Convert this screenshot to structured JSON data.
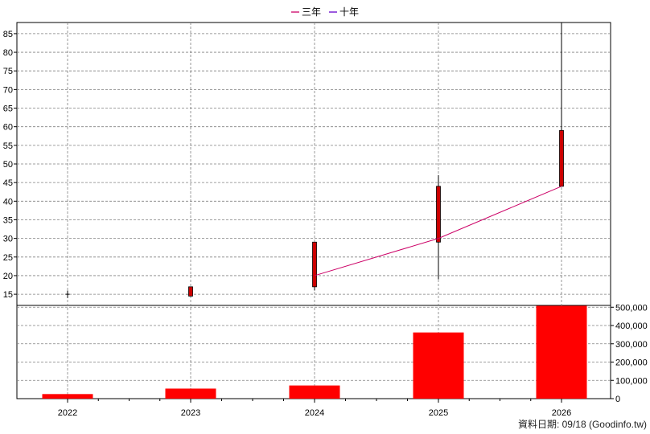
{
  "chart_data": {
    "type": "candlestick",
    "legend": {
      "placement": "top-center",
      "entries": [
        {
          "name": "三年",
          "color": "#cc0066"
        },
        {
          "name": "十年",
          "color": "#6600cc"
        }
      ]
    },
    "categories": [
      "2022",
      "2023",
      "2024",
      "2025",
      "2026"
    ],
    "price_axis": {
      "ylim": [
        12,
        88
      ],
      "ticks": [
        15,
        20,
        25,
        30,
        35,
        40,
        45,
        50,
        55,
        60,
        65,
        70,
        75,
        80,
        85
      ],
      "grid": true
    },
    "candles": [
      {
        "x": "2022",
        "open": 15,
        "close": 15,
        "high": 16,
        "low": 14
      },
      {
        "x": "2023",
        "open": 14.5,
        "close": 17,
        "high": 17,
        "low": 14.5
      },
      {
        "x": "2024",
        "open": 17,
        "close": 29,
        "high": 29,
        "low": 16
      },
      {
        "x": "2025",
        "open": 29,
        "close": 44,
        "high": 47,
        "low": 19
      },
      {
        "x": "2026",
        "open": 44,
        "close": 59,
        "high": 88,
        "low": 44
      }
    ],
    "series": [
      {
        "name": "三年",
        "color": "#cc0066",
        "x": [
          "2024",
          "2025",
          "2026"
        ],
        "values": [
          20,
          30,
          44
        ]
      }
    ],
    "volume_axis": {
      "ylim": [
        0,
        510000
      ],
      "ticks": [
        0,
        100000,
        200000,
        300000,
        400000,
        500000
      ],
      "tick_labels": [
        "0",
        "100,000",
        "200,000",
        "300,000",
        "400,000",
        "500,000"
      ],
      "grid": true
    },
    "volume": {
      "x": [
        "2022",
        "2023",
        "2024",
        "2025",
        "2026"
      ],
      "values": [
        25000,
        55000,
        72000,
        362000,
        508000
      ]
    },
    "colors": {
      "candle_up": "#cc0000",
      "volume_bar": "#ff0000",
      "grid": "#808080"
    }
  },
  "footer": {
    "date_label": "資料日期: 09/18  (Goodinfo.tw)"
  }
}
